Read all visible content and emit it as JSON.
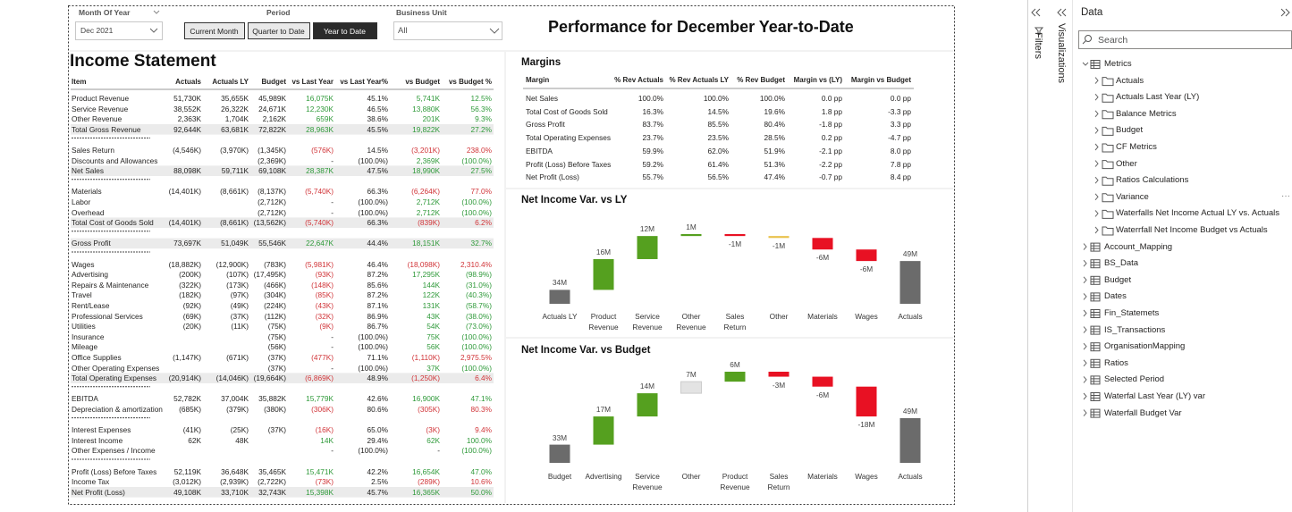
{
  "filters": {
    "month_label": "Month Of Year",
    "month_value": "Dec 2021",
    "period_label": "Period",
    "period_buttons": [
      "Current Month",
      "Quarter to Date",
      "Year to Date"
    ],
    "period_selected": 2,
    "bu_label": "Business Unit",
    "bu_value": "All"
  },
  "title": "Performance for December Year-to-Date",
  "income": {
    "title": "Income Statement",
    "colors": {
      "favorable": "#2f9a3a",
      "unfavorable": "#d13438"
    },
    "headers": [
      "Item",
      "Actuals",
      "Actuals LY",
      "Budget",
      "vs Last Year",
      "vs Last Year%",
      "vs Budget",
      "vs Budget %"
    ],
    "groups": [
      {
        "shaded": true,
        "rows": [
          [
            "Product Revenue",
            "51,730K",
            "35,655K",
            "45,989K",
            "16,075K",
            "45.1%",
            "5,741K",
            "12.5%"
          ],
          [
            "Service Revenue",
            "38,552K",
            "26,322K",
            "24,671K",
            "12,230K",
            "46.5%",
            "13,880K",
            "56.3%"
          ],
          [
            "Other Revenue",
            "2,363K",
            "1,704K",
            "2,162K",
            "659K",
            "38.6%",
            "201K",
            "9.3%"
          ],
          [
            "Total Gross Revenue",
            "92,644K",
            "63,681K",
            "72,822K",
            "28,963K",
            "45.5%",
            "19,822K",
            "27.2%"
          ]
        ]
      },
      {
        "shaded": true,
        "rows": [
          [
            "Sales Return",
            "(4,546K)",
            "(3,970K)",
            "(1,345K)",
            "(576K)",
            "14.5%",
            "(3,201K)",
            "238.0%"
          ],
          [
            "Discounts and Allowances",
            null,
            null,
            "(2,369K)",
            "-",
            "(100.0%)",
            "2,369K",
            "(100.0%)"
          ],
          [
            "Net Sales",
            "88,098K",
            "59,711K",
            "69,108K",
            "28,387K",
            "47.5%",
            "18,990K",
            "27.5%"
          ]
        ]
      },
      {
        "shaded": true,
        "rows": [
          [
            "Materials",
            "(14,401K)",
            "(8,661K)",
            "(8,137K)",
            "(5,740K)",
            "66.3%",
            "(6,264K)",
            "77.0%"
          ],
          [
            "Labor",
            null,
            null,
            "(2,712K)",
            "-",
            "(100.0%)",
            "2,712K",
            "(100.0%)"
          ],
          [
            "Overhead",
            null,
            null,
            "(2,712K)",
            "-",
            "(100.0%)",
            "2,712K",
            "(100.0%)"
          ],
          [
            "Total Cost of Goods Sold",
            "(14,401K)",
            "(8,661K)",
            "(13,562K)",
            "(5,740K)",
            "66.3%",
            "(839K)",
            "6.2%"
          ]
        ]
      },
      {
        "shaded": true,
        "rows": [
          [
            "Gross Profit",
            "73,697K",
            "51,049K",
            "55,546K",
            "22,647K",
            "44.4%",
            "18,151K",
            "32.7%"
          ]
        ]
      },
      {
        "shaded": true,
        "rows": [
          [
            "Wages",
            "(18,882K)",
            "(12,900K)",
            "(783K)",
            "(5,981K)",
            "46.4%",
            "(18,098K)",
            "2,310.4%"
          ],
          [
            "Advertising",
            "(200K)",
            "(107K)",
            "(17,495K)",
            "(93K)",
            "87.2%",
            "17,295K",
            "(98.9%)"
          ],
          [
            "Repairs & Maintenance",
            "(322K)",
            "(173K)",
            "(466K)",
            "(148K)",
            "85.6%",
            "144K",
            "(31.0%)"
          ],
          [
            "Travel",
            "(182K)",
            "(97K)",
            "(304K)",
            "(85K)",
            "87.2%",
            "122K",
            "(40.3%)"
          ],
          [
            "Rent/Lease",
            "(92K)",
            "(49K)",
            "(224K)",
            "(43K)",
            "87.1%",
            "131K",
            "(58.7%)"
          ],
          [
            "Professional Services",
            "(69K)",
            "(37K)",
            "(112K)",
            "(32K)",
            "86.9%",
            "43K",
            "(38.0%)"
          ],
          [
            "Utilities",
            "(20K)",
            "(11K)",
            "(75K)",
            "(9K)",
            "86.7%",
            "54K",
            "(73.0%)"
          ],
          [
            "Insurance",
            null,
            null,
            "(75K)",
            "-",
            "(100.0%)",
            "75K",
            "(100.0%)"
          ],
          [
            "Mileage",
            null,
            null,
            "(56K)",
            "-",
            "(100.0%)",
            "56K",
            "(100.0%)"
          ],
          [
            "Office Supplies",
            "(1,147K)",
            "(671K)",
            "(37K)",
            "(477K)",
            "71.1%",
            "(1,110K)",
            "2,975.5%"
          ],
          [
            "Other Operating Expenses",
            null,
            null,
            "(37K)",
            "-",
            "(100.0%)",
            "37K",
            "(100.0%)"
          ],
          [
            "Total Operating Expenses",
            "(20,914K)",
            "(14,046K)",
            "(19,664K)",
            "(6,869K)",
            "48.9%",
            "(1,250K)",
            "6.4%"
          ]
        ]
      },
      {
        "shaded": false,
        "rows": [
          [
            "EBITDA",
            "52,782K",
            "37,004K",
            "35,882K",
            "15,779K",
            "42.6%",
            "16,900K",
            "47.1%"
          ],
          [
            "Depreciation & amortization",
            "(685K)",
            "(379K)",
            "(380K)",
            "(306K)",
            "80.6%",
            "(305K)",
            "80.3%"
          ]
        ]
      },
      {
        "shaded": false,
        "rows": [
          [
            "Interest Expenses",
            "(41K)",
            "(25K)",
            "(37K)",
            "(16K)",
            "65.0%",
            "(3K)",
            "9.4%"
          ],
          [
            "Interest Income",
            "62K",
            "48K",
            null,
            "14K",
            "29.4%",
            "62K",
            "100.0%"
          ],
          [
            "Other Expenses / Income",
            null,
            null,
            null,
            "-",
            "(100.0%)",
            "-",
            "(100.0%)"
          ]
        ]
      },
      {
        "shaded": true,
        "rows": [
          [
            "Profit (Loss) Before Taxes",
            "52,119K",
            "36,648K",
            "35,465K",
            "15,471K",
            "42.2%",
            "16,654K",
            "47.0%"
          ],
          [
            "Income Tax",
            "(3,012K)",
            "(2,939K)",
            "(2,722K)",
            "(73K)",
            "2.5%",
            "(289K)",
            "10.6%"
          ],
          [
            "Net Profit (Loss)",
            "49,108K",
            "33,710K",
            "32,743K",
            "15,398K",
            "45.7%",
            "16,365K",
            "50.0%"
          ]
        ]
      }
    ]
  },
  "margins": {
    "title": "Margins",
    "headers": [
      "Margin",
      "% Rev Actuals",
      "% Rev Actuals LY",
      "% Rev Budget",
      "Margin vs (LY)",
      "Margin vs Budget"
    ],
    "rows": [
      [
        "Net Sales",
        "100.0%",
        "100.0%",
        "100.0%",
        "0.0 pp",
        "0.0 pp"
      ],
      [
        "Total Cost of Goods Sold",
        "16.3%",
        "14.5%",
        "19.6%",
        "1.8 pp",
        "-3.3 pp"
      ],
      [
        "Gross Profit",
        "83.7%",
        "85.5%",
        "80.4%",
        "-1.8 pp",
        "3.3 pp"
      ],
      [
        "Total Operating Expenses",
        "23.7%",
        "23.5%",
        "28.5%",
        "0.2 pp",
        "-4.7 pp"
      ],
      [
        "EBITDA",
        "59.9%",
        "62.0%",
        "51.9%",
        "-2.1 pp",
        "8.0 pp"
      ],
      [
        "Profit (Loss) Before Taxes",
        "59.2%",
        "61.4%",
        "51.3%",
        "-2.2 pp",
        "7.8 pp"
      ],
      [
        "Net Profit (Loss)",
        "55.7%",
        "56.5%",
        "47.4%",
        "-0.7 pp",
        "8.4 pp"
      ]
    ]
  },
  "waterfalls": [
    {
      "type": "waterfall",
      "title": "Net Income Var. vs LY",
      "categories": [
        "Actuals LY",
        "Product Revenue",
        "Service Revenue",
        "Other Revenue",
        "Sales Return",
        "Other",
        "Materials",
        "Wages",
        "Actuals"
      ],
      "values": [
        34,
        16,
        12,
        1,
        -1,
        -1,
        -6,
        -6,
        49
      ],
      "value_labels": [
        "34M",
        "16M",
        "12M",
        "1M",
        "-1M",
        "-1M",
        "-6M",
        "-6M",
        "49M"
      ],
      "colors": [
        "#6b6b6b",
        "#55a01f",
        "#55a01f",
        "#55a01f",
        "#e81123",
        "#e8c14a",
        "#e81123",
        "#e81123",
        "#6b6b6b"
      ]
    },
    {
      "type": "waterfall",
      "title": "Net Income Var. vs Budget",
      "categories": [
        "Budget",
        "Advertising",
        "Service Revenue",
        "Other",
        "Product Revenue",
        "Sales Return",
        "Materials",
        "Wages",
        "Actuals"
      ],
      "values": [
        33,
        17,
        14,
        7,
        6,
        -3,
        -6,
        -18,
        49
      ],
      "value_labels": [
        "33M",
        "17M",
        "14M",
        "7M",
        "6M",
        "-3M",
        "-6M",
        "-18M",
        "49M"
      ],
      "colors": [
        "#6b6b6b",
        "#55a01f",
        "#55a01f",
        "#e3e3e3",
        "#55a01f",
        "#e81123",
        "#e81123",
        "#e81123",
        "#6b6b6b"
      ]
    }
  ],
  "panes": {
    "filters": "Filters",
    "visualizations": "Visualizations"
  },
  "data_pane": {
    "title": "Data",
    "search": "Search",
    "items": [
      {
        "label": "Metrics",
        "kind": "measures",
        "level": 0
      },
      {
        "label": "Actuals",
        "kind": "folder",
        "level": 1
      },
      {
        "label": "Actuals Last Year (LY)",
        "kind": "folder",
        "level": 1
      },
      {
        "label": "Balance Metrics",
        "kind": "folder",
        "level": 1
      },
      {
        "label": "Budget",
        "kind": "folder",
        "level": 1
      },
      {
        "label": "CF Metrics",
        "kind": "folder",
        "level": 1
      },
      {
        "label": "Other",
        "kind": "folder",
        "level": 1
      },
      {
        "label": "Ratios Calculations",
        "kind": "folder",
        "level": 1
      },
      {
        "label": "Variance",
        "kind": "folder",
        "level": 1
      },
      {
        "label": "Waterfalls Net Income Actual LY vs. Actuals",
        "kind": "folder",
        "level": 1
      },
      {
        "label": "Waterrfall Net Income Budget vs Actuals",
        "kind": "folder",
        "level": 1
      },
      {
        "label": "Account_Mapping",
        "kind": "table",
        "level": 0
      },
      {
        "label": "BS_Data",
        "kind": "table",
        "level": 0
      },
      {
        "label": "Budget",
        "kind": "table",
        "level": 0
      },
      {
        "label": "Dates",
        "kind": "table",
        "level": 0
      },
      {
        "label": "Fin_Statemets",
        "kind": "table",
        "level": 0
      },
      {
        "label": "IS_Transactions",
        "kind": "table",
        "level": 0
      },
      {
        "label": "OrganisationMapping",
        "kind": "table",
        "level": 0
      },
      {
        "label": "Ratios",
        "kind": "table",
        "level": 0
      },
      {
        "label": "Selected Period",
        "kind": "table",
        "level": 0
      },
      {
        "label": "Waterfal Last Year (LY) var",
        "kind": "table",
        "level": 0
      },
      {
        "label": "Waterfall Budget Var",
        "kind": "table",
        "level": 0
      }
    ]
  }
}
